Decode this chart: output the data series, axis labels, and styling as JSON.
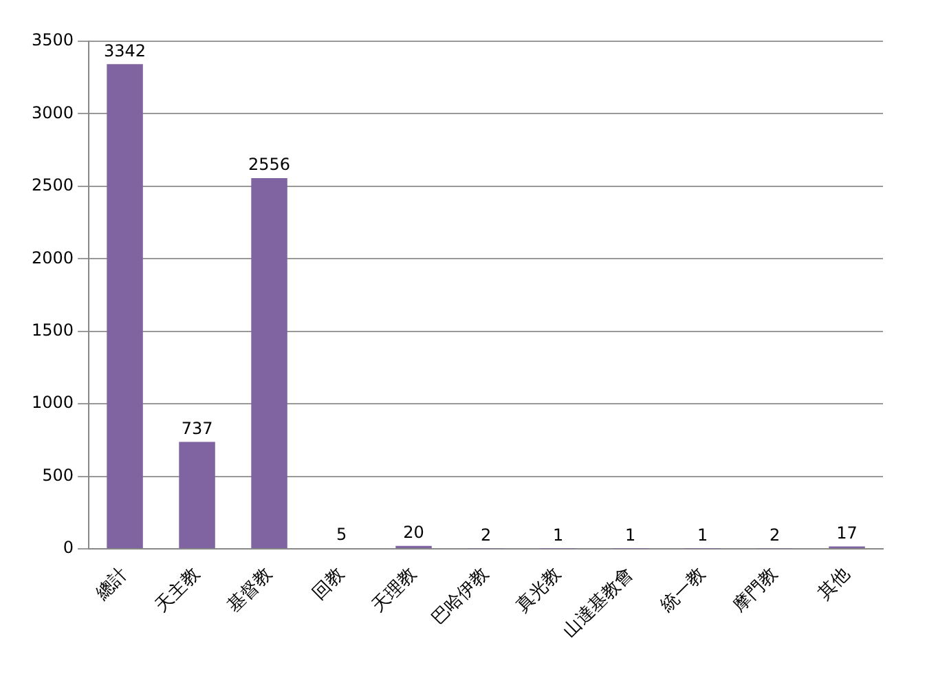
{
  "chart_data": {
    "type": "bar",
    "categories": [
      "總計",
      "天主教",
      "基督教",
      "回教",
      "天理教",
      "巴哈伊教",
      "真光教",
      "山達基教會",
      "統一教",
      "摩門教",
      "其他"
    ],
    "values": [
      3342,
      737,
      2556,
      5,
      20,
      2,
      1,
      1,
      1,
      2,
      17
    ],
    "color": "#8064a2",
    "ylim": [
      0,
      3500
    ],
    "yticks": [
      0,
      500,
      1000,
      1500,
      2000,
      2500,
      3000,
      3500
    ],
    "grid": "y",
    "data_labels": true,
    "legend": false
  }
}
